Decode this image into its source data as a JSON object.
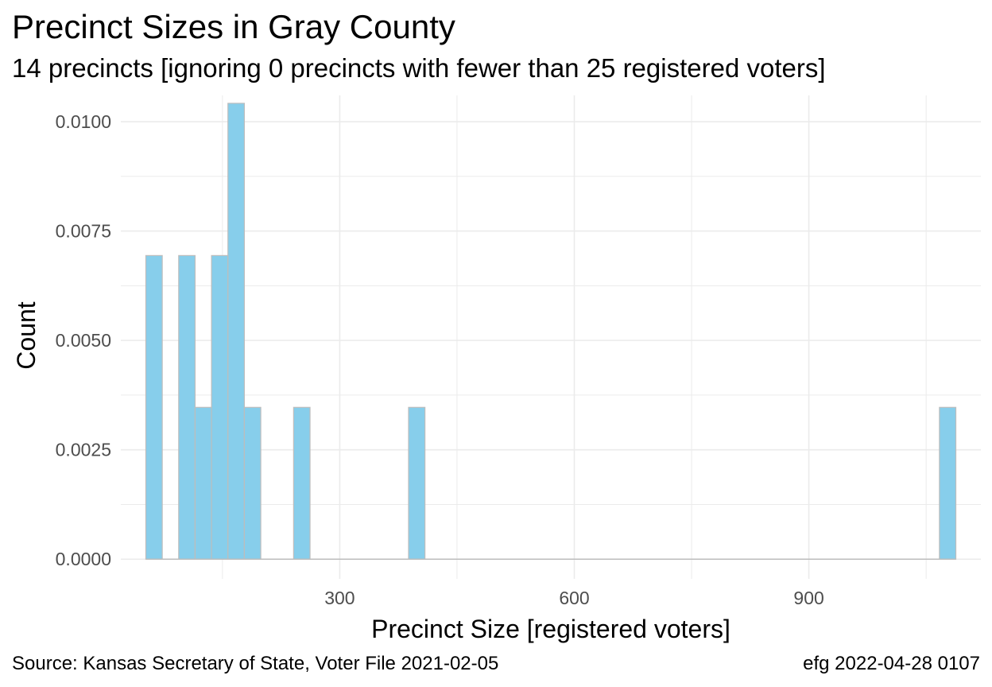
{
  "chart_data": {
    "type": "bar",
    "title": "Precinct Sizes in Gray County",
    "subtitle": "14 precincts [ignoring 0 precincts with fewer than 25 registered voters]",
    "xlabel": "Precinct Size [registered voters]",
    "ylabel": "Count",
    "caption_left": "Source:  Kansas Secretary of State, Voter File  2021-02-05",
    "caption_right": "efg 2022-04-28 0107",
    "xlim": [
      20,
      1120
    ],
    "ylim": [
      -0.00045,
      0.0106
    ],
    "x_ticks": [
      300,
      600,
      900
    ],
    "x_tick_labels": [
      "300",
      "600",
      "900"
    ],
    "x_minor_ticks": [
      150,
      450,
      750,
      1050
    ],
    "y_ticks": [
      0,
      0.0025,
      0.005,
      0.0075,
      0.01
    ],
    "y_tick_labels": [
      "0.0000",
      "0.0025",
      "0.0050",
      "0.0075",
      "0.0100"
    ],
    "y_minor_ticks": [
      0.00125,
      0.00375,
      0.00625,
      0.00875
    ],
    "grid": true,
    "bar_fill": "#87ceeb",
    "bar_outline": "#bdbdbd",
    "grid_color": "#ebebeb",
    "bins": [
      {
        "x0": 52,
        "x1": 73,
        "value": 0.00694
      },
      {
        "x0": 73,
        "x1": 94,
        "value": 0.0
      },
      {
        "x0": 94,
        "x1": 115,
        "value": 0.00694
      },
      {
        "x0": 115,
        "x1": 136,
        "value": 0.00347
      },
      {
        "x0": 136,
        "x1": 157,
        "value": 0.00694
      },
      {
        "x0": 157,
        "x1": 178,
        "value": 0.01042
      },
      {
        "x0": 178,
        "x1": 199,
        "value": 0.00347
      },
      {
        "x0": 199,
        "x1": 220,
        "value": 0.0
      },
      {
        "x0": 220,
        "x1": 241,
        "value": 0.0
      },
      {
        "x0": 241,
        "x1": 262,
        "value": 0.00347
      },
      {
        "x0": 262,
        "x1": 283,
        "value": 0.0
      },
      {
        "x0": 283,
        "x1": 304,
        "value": 0.0
      },
      {
        "x0": 304,
        "x1": 325,
        "value": 0.0
      },
      {
        "x0": 325,
        "x1": 346,
        "value": 0.0
      },
      {
        "x0": 346,
        "x1": 367,
        "value": 0.0
      },
      {
        "x0": 367,
        "x1": 388,
        "value": 0.0
      },
      {
        "x0": 388,
        "x1": 409,
        "value": 0.00347
      },
      {
        "x0": 409,
        "x1": 1067,
        "value": 0.0
      },
      {
        "x0": 1067,
        "x1": 1088,
        "value": 0.00347
      }
    ]
  }
}
